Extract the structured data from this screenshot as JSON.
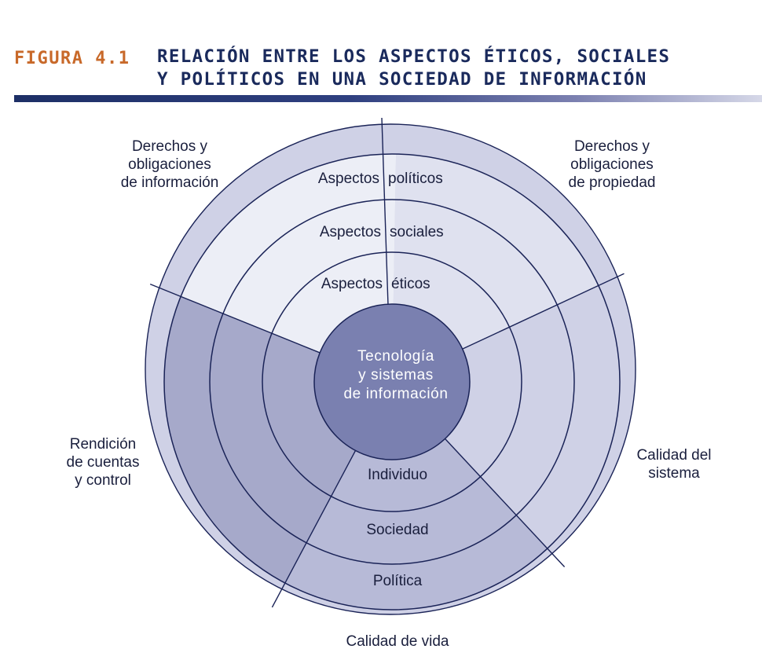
{
  "figure_label": "FIGURA 4.1",
  "title_lines": [
    "RELACIÓN ENTRE LOS ASPECTOS ÉTICOS, SOCIALES",
    "Y POLÍTICOS EN UNA SOCIEDAD DE INFORMACIÓN"
  ],
  "colors": {
    "label_orange": "#c8692a",
    "title_navy": "#1a2a5c",
    "line": "#1a2357",
    "center_fill": "#7a80b0",
    "ring_sector_dark": "#a6a9ca",
    "ring_sector_mid": "#b7bad7",
    "ring_sector_light": "#cfd1e6",
    "ring_sector_lighter": "#dfe1ef",
    "ring_sector_lightest": "#eceef6"
  },
  "center": {
    "lines": [
      "Tecnología",
      "y sistemas",
      "de información"
    ]
  },
  "upper_rings": {
    "politicos": [
      "Aspectos",
      "políticos"
    ],
    "sociales": [
      "Aspectos",
      "sociales"
    ],
    "eticos": [
      "Aspectos",
      "éticos"
    ]
  },
  "lower_rings": {
    "individuo": "Individuo",
    "sociedad": "Sociedad",
    "politica": "Política"
  },
  "outer_labels": {
    "top_left": [
      "Derechos y",
      "obligaciones",
      "de información"
    ],
    "top_right": [
      "Derechos y",
      "obligaciones",
      "de propiedad"
    ],
    "left": [
      "Rendición",
      "de cuentas",
      "y control"
    ],
    "right": [
      "Calidad del",
      "sistema"
    ],
    "bottom": [
      "Calidad de vida"
    ]
  }
}
